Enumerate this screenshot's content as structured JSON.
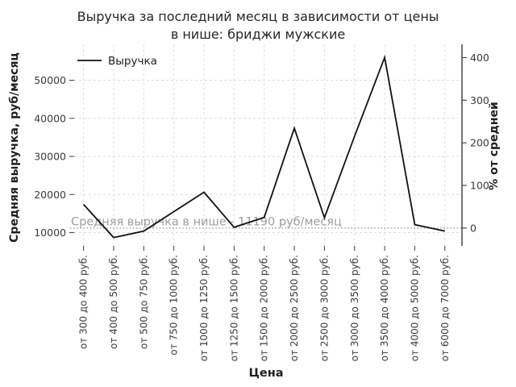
{
  "title": {
    "line1": "Выручка за последний месяц в зависимости от цены",
    "line2": "в нише: бриджи мужские"
  },
  "chart_data": {
    "type": "line",
    "title": "Выручка за последний месяц в зависимости от цены в нише: бриджи мужские",
    "xlabel": "Цена",
    "ylabel_left": "Средняя выручка, руб/месяц",
    "ylabel_right": "% от средней",
    "legend": {
      "position": "top-left",
      "entries": [
        "Выручка"
      ]
    },
    "categories": [
      "от 300 до 400 руб.",
      "от 400 до 500 руб.",
      "от 500 до 750 руб.",
      "от 750 до 1000 руб.",
      "от 1000 до 1250 руб.",
      "от 1250 до 1500 руб.",
      "от 1500 до 2000 руб.",
      "от 2000 до 2500 руб.",
      "от 2500 до 3000 руб.",
      "от 3000 до 3500 руб.",
      "от 3500 до 4000 руб.",
      "от 4000 до 5000 руб.",
      "от 6000 до 7000 руб."
    ],
    "series": [
      {
        "name": "Выручка",
        "values": [
          17400,
          8700,
          10400,
          15500,
          20600,
          11400,
          14000,
          37400,
          13900,
          35300,
          56000,
          12100,
          10400
        ]
      }
    ],
    "left_axis": {
      "ticks": [
        10000,
        20000,
        30000,
        40000,
        50000
      ]
    },
    "right_axis": {
      "ticks": [
        0,
        100,
        200,
        300,
        400
      ]
    },
    "average_line": {
      "value": 11190,
      "label": "Средняя выручка в нише - 11190 руб/месяц"
    },
    "grid": true,
    "colors": {
      "line": "#111111",
      "grid": "#dcdcdc",
      "average_line": "#8f8f8f",
      "average_text": "#9c9c9c",
      "tick_text": "#3a3a3a",
      "axis_text": "#1f1f1f",
      "spine": "#2b2b2b"
    }
  }
}
